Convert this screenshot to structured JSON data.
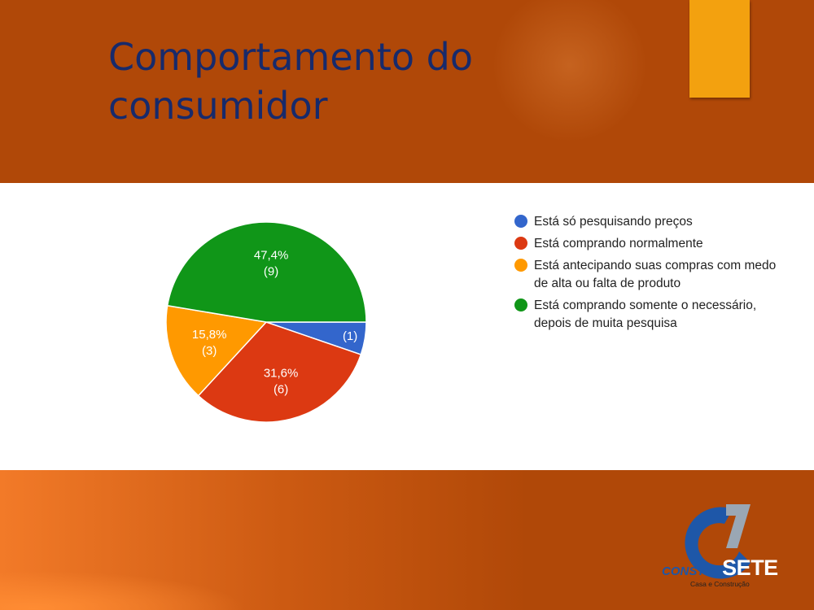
{
  "slide": {
    "title": "Comportamento do consumidor"
  },
  "colors": {
    "background": "#b04808",
    "accent": "#f3a10f",
    "title": "#172a6b"
  },
  "chart_data": {
    "type": "pie",
    "slices": [
      {
        "label": "Está só pesquisando preços",
        "value": 1,
        "percent_label": "",
        "count_label": "(1)",
        "color": "#3366cc"
      },
      {
        "label": "Está comprando normalmente",
        "value": 6,
        "percent_label": "31,6%",
        "count_label": "(6)",
        "color": "#dc3912"
      },
      {
        "label": "Está antecipando suas compras com medo de alta ou falta de produto",
        "value": 3,
        "percent_label": "15,8%",
        "count_label": "(3)",
        "color": "#ff9900"
      },
      {
        "label": "Está comprando somente o necessário, depois de muita pesquisa",
        "value": 9,
        "percent_label": "47,4%",
        "count_label": "(9)",
        "color": "#109618"
      }
    ],
    "legend_position": "right"
  },
  "logo": {
    "word_part1": "CONSTRU",
    "word_part2": "SETE",
    "tagline": "Casa e Construção"
  }
}
